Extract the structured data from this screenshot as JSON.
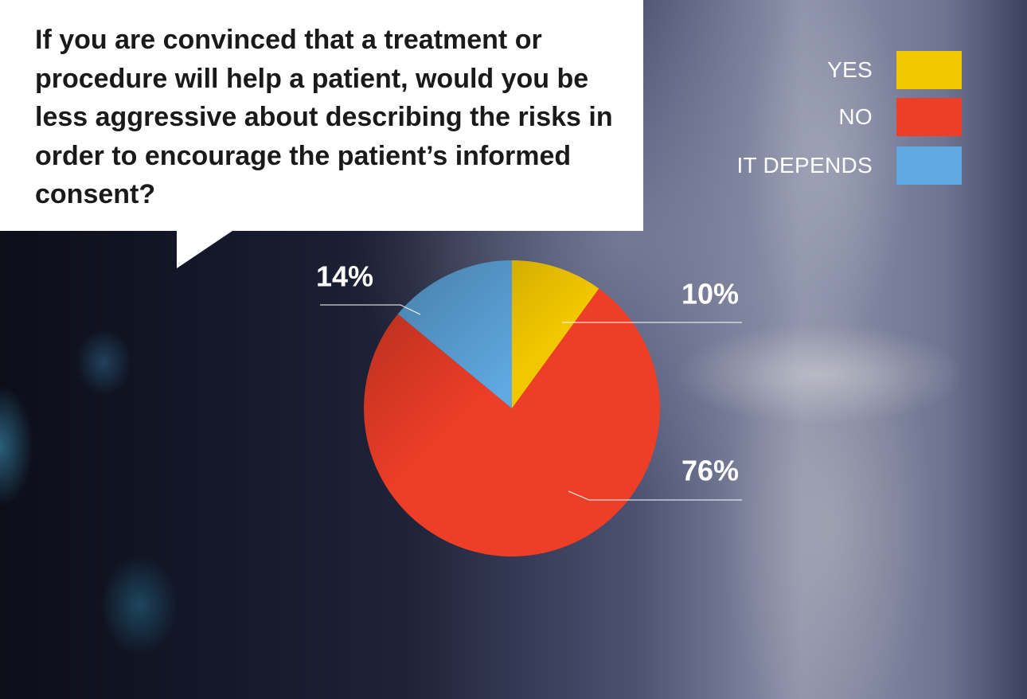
{
  "question": "If you are convinced that a treatment or procedure will help a patient, would you be less aggressive about describing the risks in order to encourage the patient’s informed consent?",
  "legend": [
    {
      "label": "YES",
      "color": "#f2c700"
    },
    {
      "label": "NO",
      "color": "#ef3e28"
    },
    {
      "label": "IT DEPENDS",
      "color": "#5fa8e0"
    }
  ],
  "chart_data": {
    "type": "pie",
    "categories": [
      "YES",
      "NO",
      "IT DEPENDS"
    ],
    "values": [
      10,
      76,
      14
    ],
    "unit": "%",
    "data_labels": [
      "10%",
      "76%",
      "14%"
    ],
    "colors": [
      "#f2c700",
      "#ef3e28",
      "#5fa8e0"
    ],
    "legend_position": "top-right"
  }
}
